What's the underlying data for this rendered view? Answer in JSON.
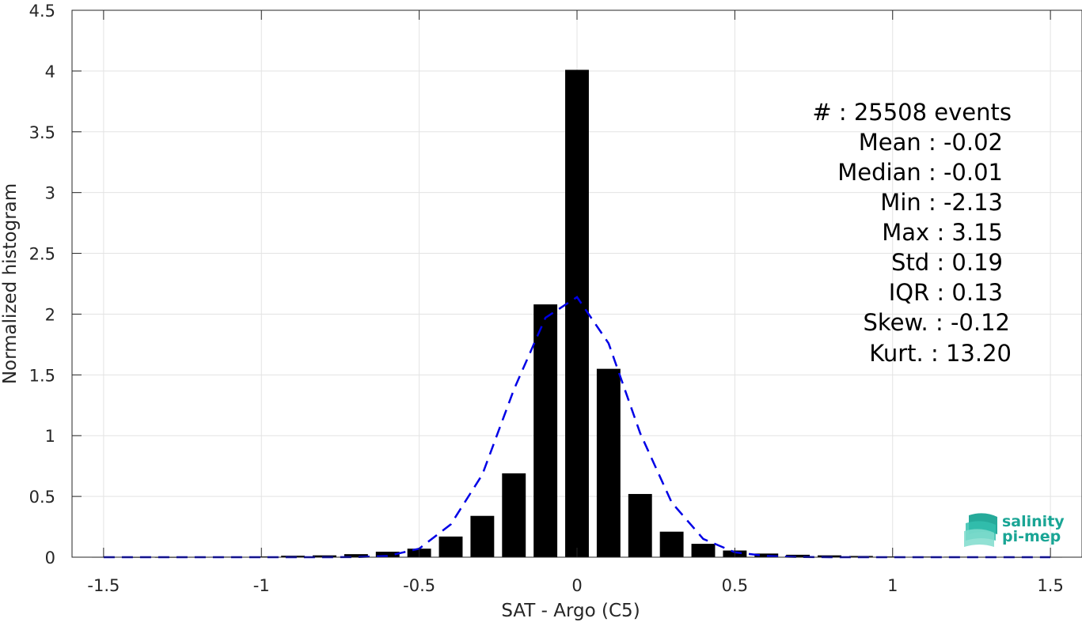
{
  "chart_data": {
    "type": "bar",
    "xlabel": "SAT - Argo (C5)",
    "ylabel": "Normalized histogram",
    "xlim": [
      -1.6,
      1.6
    ],
    "ylim": [
      0,
      4.5
    ],
    "xticks": [
      -1.5,
      -1,
      -0.5,
      0,
      0.5,
      1,
      1.5
    ],
    "xtick_labels": [
      "-1.5",
      "-1",
      "-0.5",
      "0",
      "0.5",
      "1",
      "1.5"
    ],
    "yticks": [
      0,
      0.5,
      1,
      1.5,
      2,
      2.5,
      3,
      3.5,
      4,
      4.5
    ],
    "ytick_labels": [
      "0",
      "0.5",
      "1",
      "1.5",
      "2",
      "2.5",
      "3",
      "3.5",
      "4",
      "4.5"
    ],
    "grid": true,
    "bar_color": "#000000",
    "curve_color": "#0000e6",
    "bars": {
      "x": [
        -1.5,
        -1.4,
        -1.3,
        -1.2,
        -1.1,
        -1.0,
        -0.9,
        -0.8,
        -0.7,
        -0.6,
        -0.5,
        -0.4,
        -0.3,
        -0.2,
        -0.1,
        0.0,
        0.1,
        0.2,
        0.3,
        0.4,
        0.5,
        0.6,
        0.7,
        0.8,
        0.9,
        1.0,
        1.1,
        1.2,
        1.3,
        1.4,
        1.5
      ],
      "values": [
        0.003,
        0.002,
        0.002,
        0.003,
        0.004,
        0.006,
        0.012,
        0.015,
        0.025,
        0.045,
        0.07,
        0.17,
        0.34,
        0.69,
        2.08,
        4.01,
        1.55,
        0.52,
        0.21,
        0.11,
        0.055,
        0.03,
        0.02,
        0.015,
        0.01,
        0.006,
        0.005,
        0.004,
        0.003,
        0.002,
        0.003
      ]
    },
    "fit_curve": {
      "style": "dashed",
      "x": [
        -1.5,
        -1.4,
        -1.3,
        -1.2,
        -1.1,
        -1.0,
        -0.9,
        -0.8,
        -0.7,
        -0.6,
        -0.5,
        -0.4,
        -0.3,
        -0.2,
        -0.1,
        0.0,
        0.1,
        0.2,
        0.3,
        0.4,
        0.5,
        0.6,
        0.7,
        0.8,
        0.9,
        1.0,
        1.1,
        1.2,
        1.3,
        1.4,
        1.5
      ],
      "y": [
        0,
        0,
        0,
        0,
        0,
        0,
        0,
        0,
        0.001,
        0.01,
        0.07,
        0.27,
        0.68,
        1.38,
        1.97,
        2.14,
        1.76,
        1.02,
        0.45,
        0.15,
        0.04,
        0.01,
        0.002,
        0,
        0,
        0,
        0,
        0,
        0,
        0,
        0
      ]
    }
  },
  "stats": {
    "count": "#  : 25508 events",
    "mean": "Mean : -0.02",
    "median": "Median : -0.01",
    "min": "Min : -2.13",
    "max": "Max : 3.15",
    "std": "Std : 0.19",
    "iqr": "IQR : 0.13",
    "skew": "Skew. : -0.12",
    "kurt": "Kurt. : 13.20"
  },
  "logo": {
    "line1": "salinity",
    "line2": "pi-mep",
    "icon": "salinity-wave-logo-icon",
    "color": "#1aa595"
  }
}
